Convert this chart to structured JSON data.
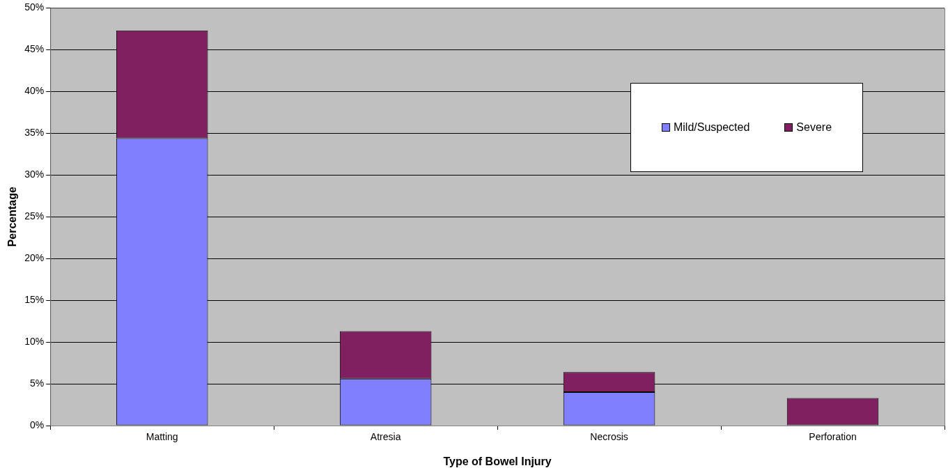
{
  "chart_data": {
    "type": "bar",
    "stacked": true,
    "xlabel": "Type of Bowel Injury",
    "ylabel": "Percentage",
    "categories": [
      "Matting",
      "Atresia",
      "Necrosis",
      "Perforation"
    ],
    "series": [
      {
        "name": "Mild/Suspected",
        "color": "#8080ff",
        "values": [
          34.4,
          5.6,
          4.0,
          0
        ]
      },
      {
        "name": "Severe",
        "color": "#802060",
        "values": [
          12.9,
          5.7,
          2.4,
          3.3
        ]
      }
    ],
    "ylim": [
      0,
      50
    ],
    "yticks": [
      {
        "value": 0,
        "label": "0%"
      },
      {
        "value": 5,
        "label": "5%"
      },
      {
        "value": 10,
        "label": "10%"
      },
      {
        "value": 15,
        "label": "15%"
      },
      {
        "value": 20,
        "label": "20%"
      },
      {
        "value": 25,
        "label": "25%"
      },
      {
        "value": 30,
        "label": "30%"
      },
      {
        "value": 35,
        "label": "35%"
      },
      {
        "value": 40,
        "label": "40%"
      },
      {
        "value": 45,
        "label": "45%"
      },
      {
        "value": 50,
        "label": "50%"
      }
    ],
    "grid": "y",
    "legend": "top right"
  }
}
